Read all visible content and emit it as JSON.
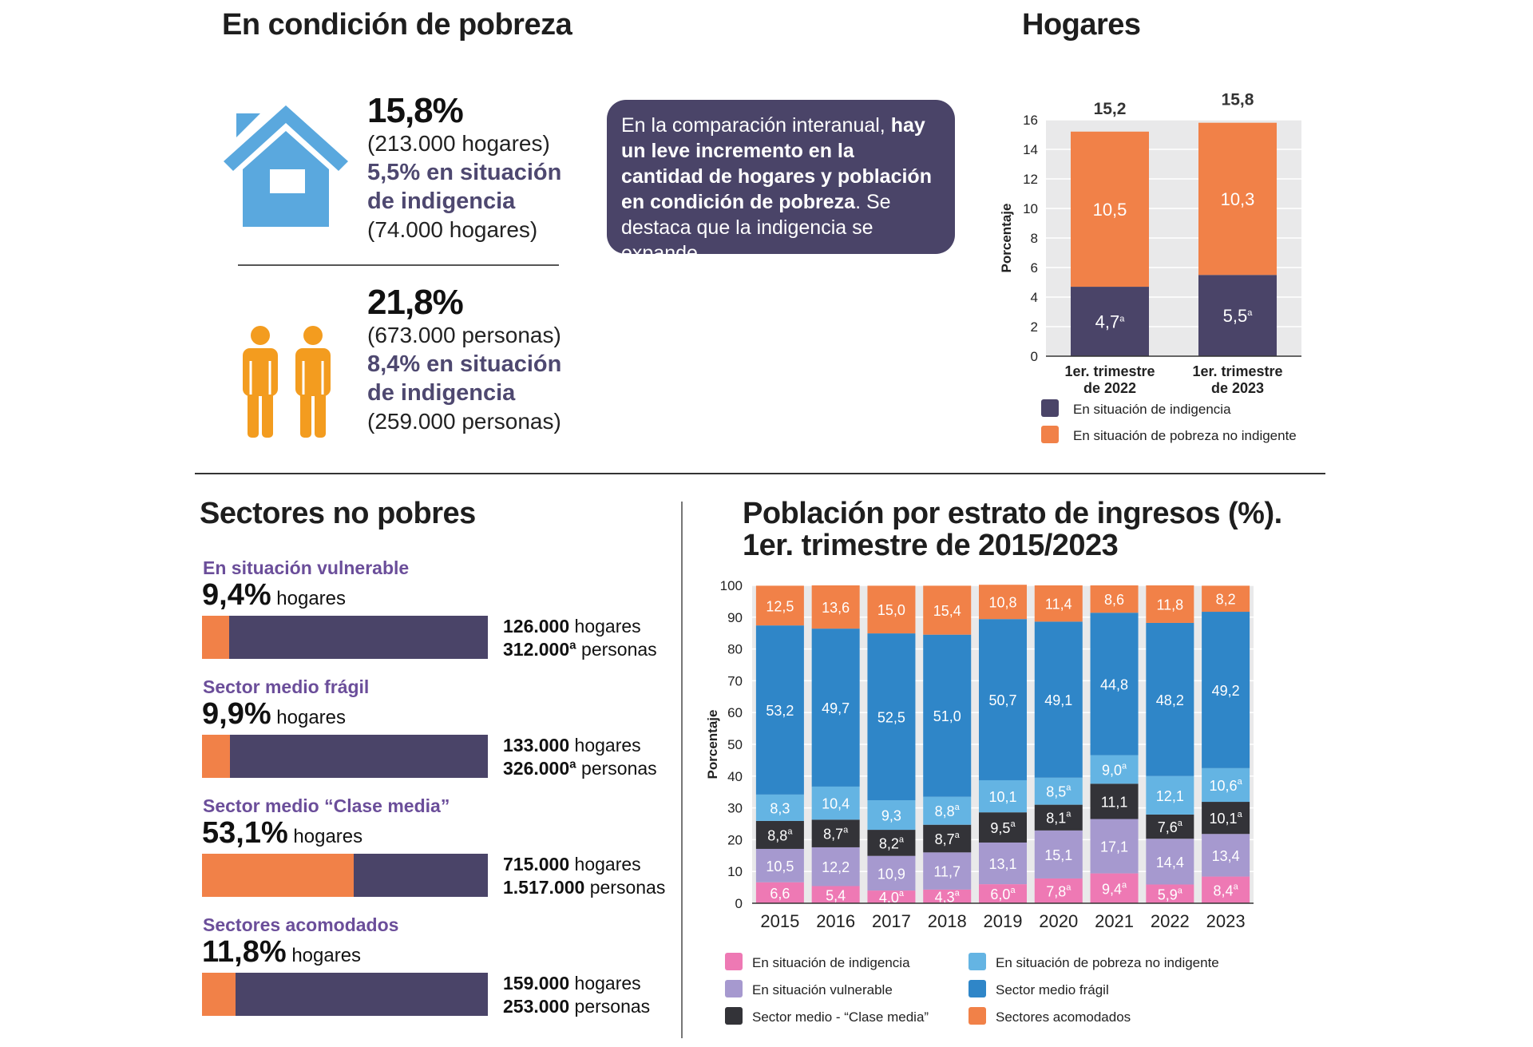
{
  "poverty": {
    "title": "En condición de pobreza",
    "households": {
      "pct": "15,8%",
      "count": "(213.000 hogares)",
      "indigence_line1": "5,5% en situación",
      "indigence_line2": "de indigencia",
      "indigence_count": "(74.000 hogares)"
    },
    "people": {
      "pct": "21,8%",
      "count": "(673.000 personas)",
      "indigence_line1": "8,4% en situación",
      "indigence_line2": "de indigencia",
      "indigence_count": "(259.000 personas)"
    },
    "icons": [
      "house-icon",
      "people-icon"
    ],
    "colors": {
      "house": "#5aa8de",
      "people": "#f39c1f",
      "purple_text": "#4e4870"
    }
  },
  "callout": {
    "part1": "En la comparación interanual, ",
    "bold": "hay un leve incremento en la cantidad de hogares y población en condición de pobreza",
    "part2": ". Se destaca que la indigencia se expande."
  },
  "sectors": {
    "title": "Sectores no pobres",
    "unit": "hogares",
    "items": [
      {
        "name": "En situación vulnerable",
        "pct": "9,4%",
        "share": 0.094,
        "hogares_num": "126.000",
        "hogares_unit": "hogares",
        "personas_num": "312.000ª",
        "personas_unit": "personas"
      },
      {
        "name": "Sector medio frágil",
        "pct": "9,9%",
        "share": 0.099,
        "hogares_num": "133.000",
        "hogares_unit": "hogares",
        "personas_num": "326.000ª",
        "personas_unit": "personas"
      },
      {
        "name": "Sector medio “Clase media”",
        "pct": "53,1%",
        "share": 0.531,
        "hogares_num": "715.000",
        "hogares_unit": "hogares",
        "personas_num": "1.517.000",
        "personas_unit": "personas"
      },
      {
        "name": "Sectores acomodados",
        "pct": "11,8%",
        "share": 0.118,
        "hogares_num": "159.000",
        "hogares_unit": "hogares",
        "personas_num": "253.000",
        "personas_unit": "personas"
      }
    ],
    "colors": {
      "fill": "#f18148",
      "track": "#4a4468",
      "title": "#6b4e9a"
    }
  },
  "chart_data": [
    {
      "id": "hogares",
      "type": "bar",
      "stacked": true,
      "title": "Hogares",
      "ylabel": "Porcentaje",
      "ylim": [
        0,
        16
      ],
      "yticks": [
        0,
        2,
        4,
        6,
        8,
        10,
        12,
        14,
        16
      ],
      "categories": [
        "1er. trimestre de 2022",
        "1er. trimestre de 2023"
      ],
      "category_lines": [
        [
          "1er. trimestre",
          "de 2022"
        ],
        [
          "1er. trimestre",
          "de 2023"
        ]
      ],
      "totals": [
        "15,2",
        "15,8"
      ],
      "series": [
        {
          "name": "En situación de indigencia",
          "color": "#4a4468",
          "values": [
            4.7,
            5.5
          ],
          "labels": [
            "4,7ª",
            "5,5ª"
          ]
        },
        {
          "name": "En situación de pobreza no indigente",
          "color": "#f18148",
          "values": [
            10.5,
            10.3
          ],
          "labels": [
            "10,5",
            "10,3"
          ]
        }
      ],
      "legend": "bottom"
    },
    {
      "id": "estratos",
      "type": "bar",
      "stacked": true,
      "title_line1": "Población por estrato de ingresos (%).",
      "title_line2": "1er. trimestre de 2015/2023",
      "ylabel": "Porcentaje",
      "ylim": [
        0,
        100
      ],
      "yticks": [
        0,
        10,
        20,
        30,
        40,
        50,
        60,
        70,
        80,
        90,
        100
      ],
      "categories": [
        "2015",
        "2016",
        "2017",
        "2018",
        "2019",
        "2020",
        "2021",
        "2022",
        "2023"
      ],
      "series": [
        {
          "name": "En situación de indigencia",
          "color": "#ee79b4",
          "text": "#ffffff",
          "values": [
            6.6,
            5.4,
            4.0,
            4.3,
            6.0,
            7.8,
            9.4,
            5.9,
            8.4
          ],
          "labels": [
            "6,6",
            "5,4",
            "4,0ª",
            "4,3ª",
            "6,0ª",
            "7,8ª",
            "9,4ª",
            "5,9ª",
            "8,4ª"
          ]
        },
        {
          "name": "En situación vulnerable",
          "color": "#a699cf",
          "text": "#ffffff",
          "values": [
            10.5,
            12.2,
            10.9,
            11.7,
            13.1,
            15.1,
            17.1,
            14.4,
            13.4
          ],
          "labels": [
            "10,5",
            "12,2",
            "10,9",
            "11,7",
            "13,1",
            "15,1",
            "17,1",
            "14,4",
            "13,4"
          ]
        },
        {
          "name": "Sector medio - “Clase media”",
          "color": "#333338",
          "text": "#ffffff",
          "values": [
            8.8,
            8.7,
            8.2,
            8.7,
            9.5,
            8.1,
            11.1,
            7.6,
            10.1
          ],
          "labels": [
            "8,8ª",
            "8,7ª",
            "8,2ª",
            "8,7ª",
            "9,5ª",
            "8,1ª",
            "11,1",
            "7,6ª",
            "10,1ª"
          ]
        },
        {
          "name": "En situación de pobreza no indigente",
          "color": "#64b4e3",
          "text": "#ffffff",
          "values": [
            8.3,
            10.4,
            9.3,
            8.8,
            10.1,
            8.5,
            9.0,
            12.1,
            10.6
          ],
          "labels": [
            "8,3",
            "10,4",
            "9,3",
            "8,8ª",
            "10,1",
            "8,5ª",
            "9,0ª",
            "12,1",
            "10,6ª"
          ]
        },
        {
          "name": "Sector medio frágil",
          "color": "#2f86c8",
          "text": "#ffffff",
          "values": [
            53.2,
            49.7,
            52.5,
            51.0,
            50.7,
            49.1,
            44.8,
            48.2,
            49.2
          ],
          "labels": [
            "53,2",
            "49,7",
            "52,5",
            "51,0",
            "50,7",
            "49,1",
            "44,8",
            "48,2",
            "49,2"
          ]
        },
        {
          "name": "Sectores acomodados",
          "color": "#f18148",
          "text": "#ffffff",
          "values": [
            12.5,
            13.6,
            15.0,
            15.4,
            10.8,
            11.4,
            8.6,
            11.8,
            8.2
          ],
          "labels": [
            "12,5",
            "13,6",
            "15,0",
            "15,4",
            "10,8",
            "11,4",
            "8,6",
            "11,8",
            "8,2"
          ]
        }
      ],
      "legend_order": [
        0,
        3,
        1,
        4,
        2,
        5
      ],
      "legend": "bottom"
    }
  ]
}
